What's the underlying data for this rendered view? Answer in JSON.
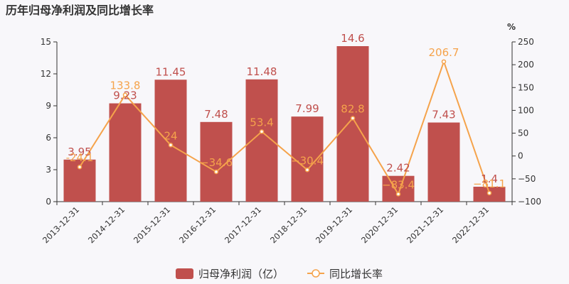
{
  "chart_data": {
    "type": "bar",
    "title": "历年归母净利润及同比增长率",
    "categories": [
      "2013-12-31",
      "2014-12-31",
      "2015-12-31",
      "2016-12-31",
      "2017-12-31",
      "2018-12-31",
      "2019-12-31",
      "2020-12-31",
      "2021-12-31",
      "2022-12-31"
    ],
    "series": [
      {
        "name": "归母净利润（亿）",
        "type": "bar",
        "axis": "left",
        "color": "#c0504d",
        "values": [
          3.95,
          9.23,
          11.45,
          7.48,
          11.48,
          7.99,
          14.6,
          2.42,
          7.43,
          1.4
        ],
        "labels": [
          "3.95",
          "9.23",
          "11.45",
          "7.48",
          "11.48",
          "7.99",
          "14.6",
          "2.42",
          "7.43",
          "1.4"
        ]
      },
      {
        "name": "同比增长率",
        "type": "line",
        "axis": "right",
        "color": "#f5a34b",
        "values": [
          -24.1,
          133.8,
          24,
          -34.6,
          53.4,
          -30.4,
          82.8,
          -83.4,
          206.7,
          -81.1
        ],
        "labels": [
          "-24.1",
          "133.8",
          "24",
          "−34.6",
          "53.4",
          "−30.4",
          "82.8",
          "−83.4",
          "206.7",
          "−81.1"
        ]
      }
    ],
    "y_left": {
      "min": 0,
      "max": 15,
      "ticks": [
        "0",
        "3",
        "6",
        "9",
        "12",
        "15"
      ]
    },
    "y_right": {
      "min": -100,
      "max": 250,
      "unit": "%",
      "ticks": [
        "−100",
        "−50",
        "0",
        "50",
        "100",
        "150",
        "200",
        "250"
      ]
    },
    "legend_position": "bottom",
    "grid": false
  }
}
